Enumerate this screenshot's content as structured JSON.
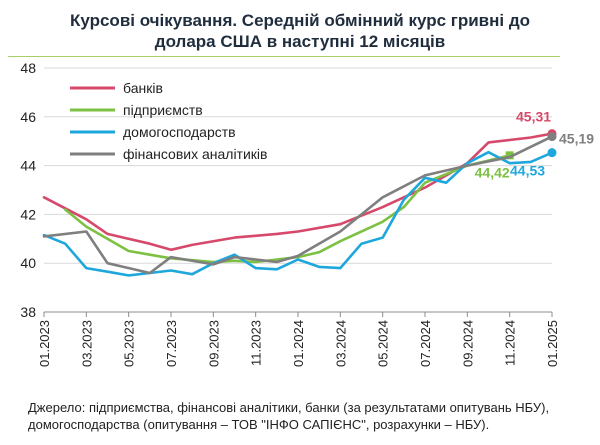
{
  "source": {
    "line1": "Джерело: підприємства, фінансові аналітики, банки (за результатами опитувань НБУ),",
    "line2": "домогосподарства (опитування – ТОВ \"ІНФО САПІЄНС\", розрахунки – НБУ)."
  },
  "chart_data": {
    "type": "line",
    "title": "Курсові очікування. Середній обмінний курс гривні до долара США в наступні 12 місяців",
    "title_lines": [
      "Курсові очікування. Середній обмінний курс гривні до",
      "долара США в наступні 12 місяців"
    ],
    "xlabel": "",
    "ylabel": "",
    "ylim": [
      38,
      48
    ],
    "yticks": [
      38,
      40,
      42,
      44,
      46,
      48
    ],
    "x_ticks": [
      "01.2023",
      "03.2023",
      "05.2023",
      "07.2023",
      "09.2023",
      "11.2023",
      "01.2024",
      "03.2024",
      "05.2024",
      "07.2024",
      "09.2024",
      "11.2024",
      "01.2025"
    ],
    "grid": "horizontal",
    "legend_position": "top-left",
    "series": [
      {
        "name": "банків",
        "color": "#d6496a",
        "x": [
          "01.2023",
          "03.2023",
          "04.2023",
          "06.2023",
          "07.2023",
          "08.2023",
          "10.2023",
          "12.2023",
          "01.2024",
          "03.2024",
          "05.2024",
          "07.2024",
          "09.2024",
          "10.2024",
          "12.2024",
          "01.2025"
        ],
        "values": [
          42.7,
          41.8,
          41.2,
          40.8,
          40.55,
          40.75,
          41.05,
          41.2,
          41.3,
          41.6,
          42.3,
          43.1,
          44.1,
          44.95,
          45.15,
          45.31
        ],
        "end_label": "45,31"
      },
      {
        "name": "підприємств",
        "color": "#7dc142",
        "x": [
          "02.2023",
          "03.2023",
          "05.2023",
          "06.2023",
          "07.2023",
          "09.2023",
          "10.2023",
          "11.2023",
          "01.2024",
          "02.2024",
          "03.2024",
          "05.2024",
          "06.2024",
          "07.2024",
          "09.2024",
          "11.2024"
        ],
        "values": [
          42.2,
          41.5,
          40.5,
          40.35,
          40.2,
          40.05,
          40.1,
          40.05,
          40.25,
          40.45,
          40.9,
          41.7,
          42.3,
          43.3,
          44.0,
          44.42
        ],
        "end_label": "44,42"
      },
      {
        "name": "домогосподарств",
        "color": "#1ea7dc",
        "x": [
          "01.2023",
          "02.2023",
          "03.2023",
          "04.2023",
          "05.2023",
          "06.2023",
          "07.2023",
          "08.2023",
          "09.2023",
          "10.2023",
          "11.2023",
          "12.2023",
          "01.2024",
          "02.2024",
          "03.2024",
          "04.2024",
          "05.2024",
          "06.2024",
          "07.2024",
          "08.2024",
          "09.2024",
          "10.2024",
          "11.2024",
          "12.2024",
          "01.2025"
        ],
        "values": [
          41.15,
          40.8,
          39.8,
          39.65,
          39.5,
          39.6,
          39.7,
          39.55,
          40.0,
          40.35,
          39.8,
          39.75,
          40.15,
          39.85,
          39.8,
          40.8,
          41.05,
          42.6,
          43.5,
          43.3,
          44.1,
          44.55,
          44.1,
          44.15,
          44.53
        ],
        "end_label": "44,53"
      },
      {
        "name": "фінансових аналітиків",
        "color": "#7f7f7f",
        "x": [
          "01.2023",
          "03.2023",
          "04.2023",
          "06.2023",
          "07.2023",
          "09.2023",
          "10.2023",
          "12.2023",
          "01.2024",
          "03.2024",
          "05.2024",
          "07.2024",
          "09.2024",
          "11.2024",
          "01.2025"
        ],
        "values": [
          41.1,
          41.3,
          40.0,
          39.6,
          40.25,
          39.95,
          40.25,
          40.05,
          40.3,
          41.3,
          42.7,
          43.6,
          44.0,
          44.35,
          45.19
        ],
        "end_label": "45,19"
      }
    ]
  }
}
